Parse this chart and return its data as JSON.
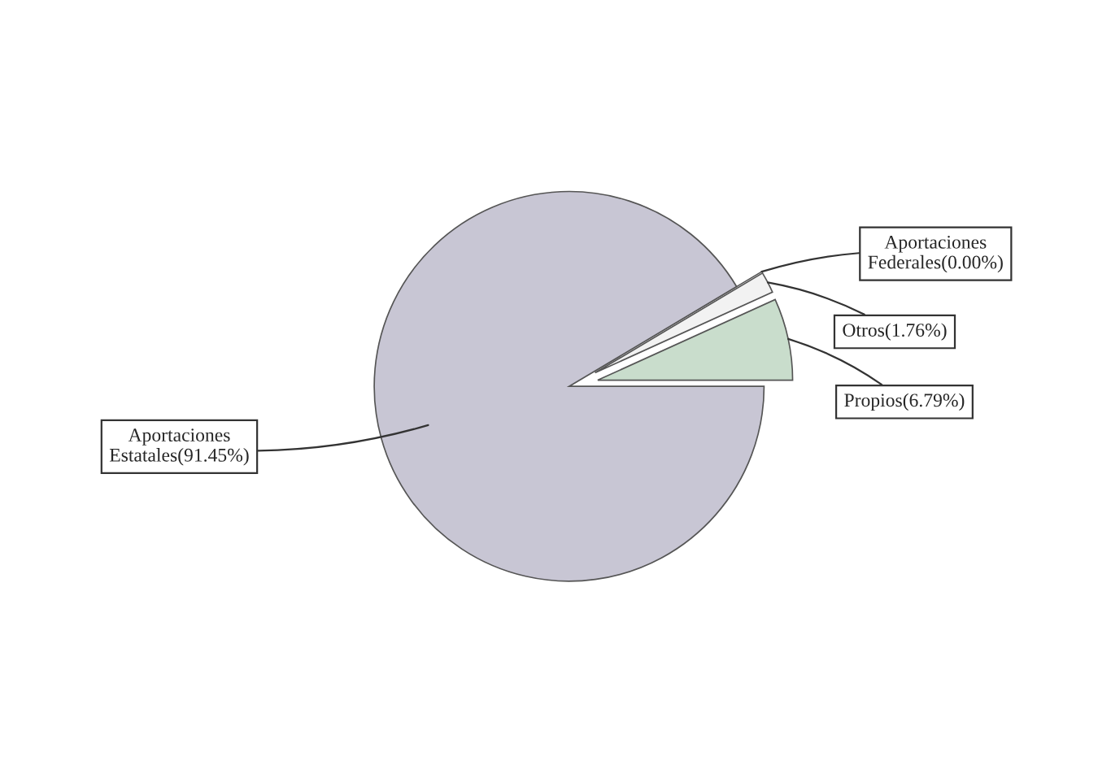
{
  "chart_data": {
    "type": "pie",
    "categories": [
      "Propios",
      "Otros",
      "Aportaciones Federales",
      "Aportaciones Estatales"
    ],
    "values": [
      6.79,
      1.76,
      0.0,
      91.45
    ],
    "value_labels": [
      "(6.79%)",
      "(1.76%)",
      "(0.00%)",
      "(91.45%)"
    ],
    "colors": [
      "#c9ddcc",
      "#f2f2f2",
      "#9a9aa0",
      "#c8c6d4"
    ]
  }
}
